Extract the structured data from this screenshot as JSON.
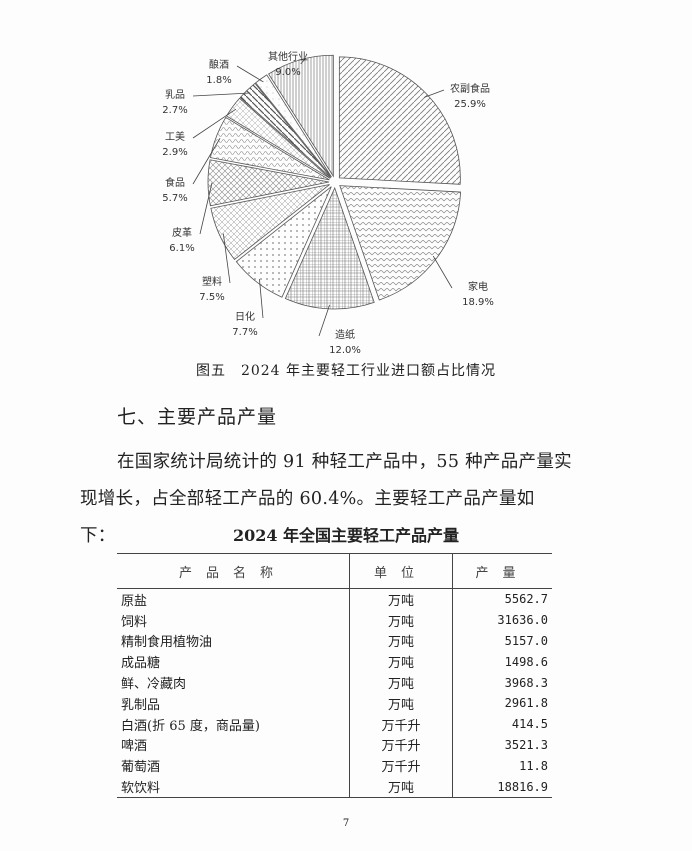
{
  "chart_data": {
    "type": "pie",
    "title": "图五　2024 年主要轻工行业进口额占比情况",
    "start": "top",
    "direction": "clockwise",
    "slices": [
      {
        "label": "农副食品",
        "value": 25.9,
        "pct": "25.9%"
      },
      {
        "label": "家电",
        "value": 18.9,
        "pct": "18.9%"
      },
      {
        "label": "造纸",
        "value": 12.0,
        "pct": "12.0%"
      },
      {
        "label": "日化",
        "value": 7.7,
        "pct": "7.7%"
      },
      {
        "label": "塑料",
        "value": 7.5,
        "pct": "7.5%"
      },
      {
        "label": "皮革",
        "value": 6.1,
        "pct": "6.1%"
      },
      {
        "label": "食品",
        "value": 5.7,
        "pct": "5.7%"
      },
      {
        "label": "工美",
        "value": 2.9,
        "pct": "2.9%"
      },
      {
        "label": "乳品",
        "value": 2.7,
        "pct": "2.7%"
      },
      {
        "label": "酿酒",
        "value": 1.8,
        "pct": "1.8%"
      },
      {
        "label": "其他行业",
        "value": 9.0,
        "pct": "9.0%"
      }
    ]
  },
  "section_heading": "七、主要产品产量",
  "paragraph": {
    "line1": "在国家统计局统计的 91 种轻工产品中，55 种产品产量实",
    "line2": "现增长，占全部轻工产品的 60.4%。主要轻工产品产量如下："
  },
  "table": {
    "title": "2024 年全国主要轻工产品产量",
    "headers": [
      "产品名称",
      "单位",
      "产量"
    ],
    "rows": [
      [
        "原盐",
        "万吨",
        "5562.7"
      ],
      [
        "饲料",
        "万吨",
        "31636.0"
      ],
      [
        "精制食用植物油",
        "万吨",
        "5157.0"
      ],
      [
        "成品糖",
        "万吨",
        "1498.6"
      ],
      [
        "鲜、冷藏肉",
        "万吨",
        "3968.3"
      ],
      [
        "乳制品",
        "万吨",
        "2961.8"
      ],
      [
        "白酒(折 65 度，商品量)",
        "万千升",
        "414.5"
      ],
      [
        "啤酒",
        "万千升",
        "3521.3"
      ],
      [
        "葡萄酒",
        "万千升",
        "11.8"
      ],
      [
        "软饮料",
        "万吨",
        "18816.9"
      ]
    ]
  },
  "page_number": "7"
}
